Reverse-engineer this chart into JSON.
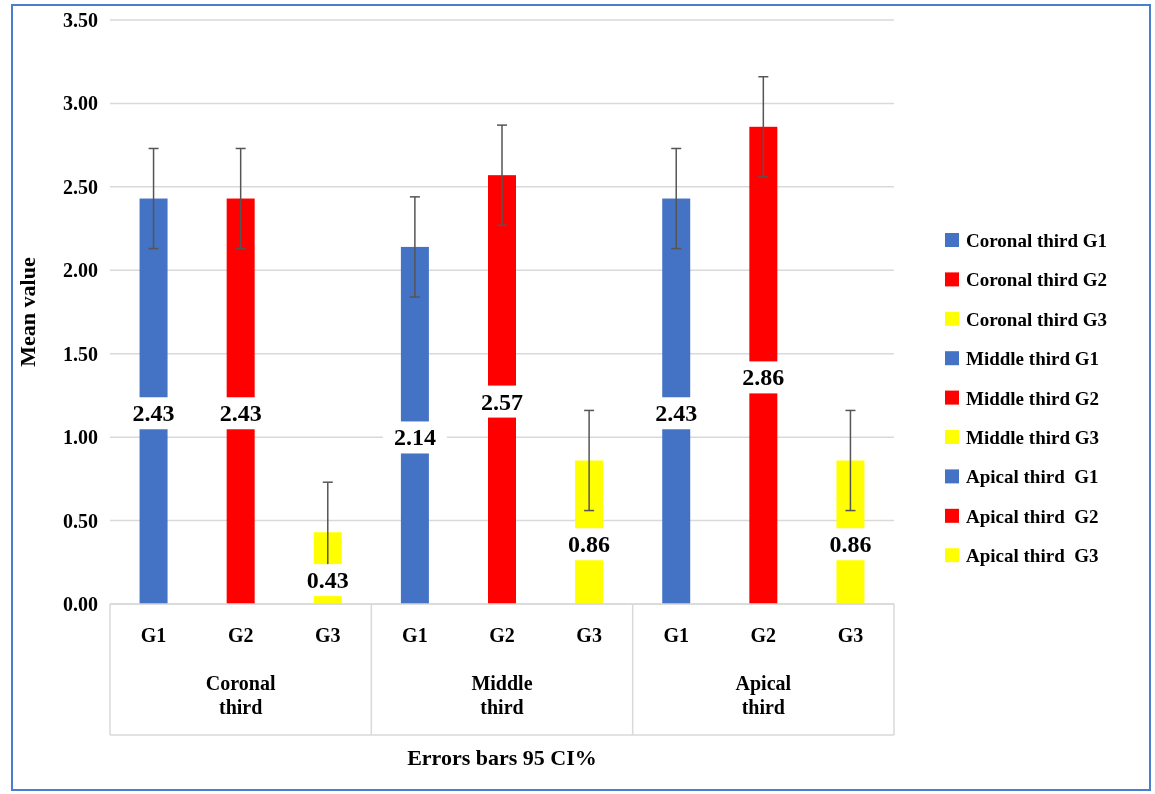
{
  "chart_data": {
    "type": "bar",
    "xlabel": "Errors bars 95 CI%",
    "ylabel": "Mean value",
    "categories": [
      "G1",
      "G2",
      "G3",
      "G1",
      "G2",
      "G3",
      "G1",
      "G2",
      "G3"
    ],
    "annotations": [
      "Coronal third",
      "Middle third",
      "Apical third"
    ],
    "ylim": [
      0,
      3.5
    ],
    "yticks": [
      {
        "value": 0,
        "label": "0.00"
      },
      {
        "value": 0.5,
        "label": "0.50"
      },
      {
        "value": 1,
        "label": "1.00"
      },
      {
        "value": 1.5,
        "label": "1.50"
      },
      {
        "value": 2,
        "label": "2.00"
      },
      {
        "value": 2.5,
        "label": "2.50"
      },
      {
        "value": 3,
        "label": "3.00"
      },
      {
        "value": 3.5,
        "label": "3.50"
      }
    ],
    "grid": "y",
    "legend": "right",
    "data_labels": true,
    "series": [
      {
        "name": "Coronal third G1",
        "color": "#4472c4",
        "values": [
          2.43,
          null,
          null,
          null,
          null,
          null,
          null,
          null,
          null
        ],
        "errors": [
          0.3,
          null,
          null,
          null,
          null,
          null,
          null,
          null,
          null
        ]
      },
      {
        "name": "Coronal third G2",
        "color": "#ff0000",
        "values": [
          null,
          2.43,
          null,
          null,
          null,
          null,
          null,
          null,
          null
        ],
        "errors": [
          null,
          0.3,
          null,
          null,
          null,
          null,
          null,
          null,
          null
        ]
      },
      {
        "name": "Coronal third G3",
        "color": "#ffff00",
        "values": [
          null,
          null,
          0.43,
          null,
          null,
          null,
          null,
          null,
          null
        ],
        "errors": [
          null,
          null,
          0.3,
          null,
          null,
          null,
          null,
          null,
          null
        ]
      },
      {
        "name": "Middle third G1",
        "color": "#4472c4",
        "values": [
          null,
          null,
          null,
          2.14,
          null,
          null,
          null,
          null,
          null
        ],
        "errors": [
          null,
          null,
          null,
          0.3,
          null,
          null,
          null,
          null,
          null
        ]
      },
      {
        "name": "Middle third G2",
        "color": "#ff0000",
        "values": [
          null,
          null,
          null,
          null,
          2.57,
          null,
          null,
          null,
          null
        ],
        "errors": [
          null,
          null,
          null,
          null,
          0.3,
          null,
          null,
          null,
          null
        ]
      },
      {
        "name": "Middle third G3",
        "color": "#ffff00",
        "values": [
          null,
          null,
          null,
          null,
          null,
          0.86,
          null,
          null,
          null
        ],
        "errors": [
          null,
          null,
          null,
          null,
          null,
          0.3,
          null,
          null,
          null
        ]
      },
      {
        "name": "Apical third  G1",
        "color": "#4472c4",
        "values": [
          null,
          null,
          null,
          null,
          null,
          null,
          2.43,
          null,
          null
        ],
        "errors": [
          null,
          null,
          null,
          null,
          null,
          null,
          0.3,
          null,
          null
        ]
      },
      {
        "name": "Apical third  G2",
        "color": "#ff0000",
        "values": [
          null,
          null,
          null,
          null,
          null,
          null,
          null,
          2.86,
          null
        ],
        "errors": [
          null,
          null,
          null,
          null,
          null,
          null,
          null,
          0.3,
          null
        ]
      },
      {
        "name": "Apical third  G3",
        "color": "#ffff00",
        "values": [
          null,
          null,
          null,
          null,
          null,
          null,
          null,
          null,
          0.86
        ],
        "errors": [
          null,
          null,
          null,
          null,
          null,
          null,
          null,
          null,
          0.3
        ]
      }
    ]
  }
}
